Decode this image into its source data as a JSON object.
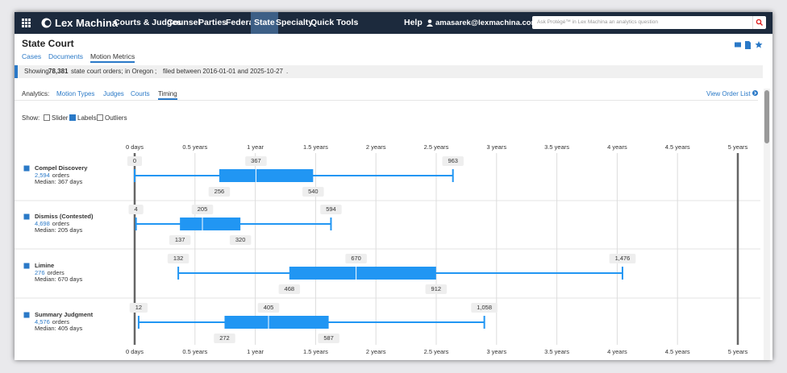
{
  "nav": {
    "logo": "Lex Machina",
    "items": [
      "Courts & Judges",
      "Counsel",
      "Parties",
      "Federal",
      "State",
      "Specialty",
      "Quick Tools"
    ],
    "active": "State",
    "help": "Help",
    "user": "amasarek@lexmachina.com",
    "search_placeholder": "Ask Protégé™ in Lex Machina an analytics question"
  },
  "header": {
    "title": "State Court",
    "tabs": [
      "Cases",
      "Documents",
      "Motion Metrics"
    ],
    "active_tab": "Motion Metrics"
  },
  "filter": {
    "prefix": "Showing",
    "count": "78,381",
    "suffix": "state court orders;",
    "court": "in Oregon",
    "separator": ";",
    "dates": "filed between 2016-01-01 and 2025-10-27",
    "end": "."
  },
  "analytics": {
    "label": "Analytics:",
    "tabs": [
      "Motion Types",
      "Judges",
      "Courts",
      "Timing"
    ],
    "active_tab": "Timing",
    "view_list": "View Order List"
  },
  "show": {
    "label": "Show:",
    "options": [
      {
        "label": "Slider",
        "checked": false
      },
      {
        "label": "Labels",
        "checked": true
      },
      {
        "label": "Outliers",
        "checked": false
      }
    ]
  },
  "chart": {
    "type": "boxplot",
    "color": "#2196f3",
    "grid": true,
    "xlim": [
      0,
      1825
    ],
    "xticks": [
      {
        "value": 0,
        "label": "0 days"
      },
      {
        "value": 182.5,
        "label": "0.5 years"
      },
      {
        "value": 365,
        "label": "1 year"
      },
      {
        "value": 547.5,
        "label": "1.5 years"
      },
      {
        "value": 730,
        "label": "2 years"
      },
      {
        "value": 912.5,
        "label": "2.5 years"
      },
      {
        "value": 1095,
        "label": "3 years"
      },
      {
        "value": 1277.5,
        "label": "3.5 years"
      },
      {
        "value": 1460,
        "label": "4 years"
      },
      {
        "value": 1642.5,
        "label": "4.5 years"
      },
      {
        "value": 1825,
        "label": "5 years"
      }
    ],
    "series": [
      {
        "name": "Compel Discovery",
        "checked": true,
        "count": "2,594",
        "count_unit": "orders",
        "median_text": "Median: 367 days",
        "min": 0,
        "q1": 256,
        "median": 367,
        "q3": 540,
        "max": 963
      },
      {
        "name": "Dismiss (Contested)",
        "checked": true,
        "count": "4,698",
        "count_unit": "orders",
        "median_text": "Median: 205 days",
        "min": 4,
        "q1": 137,
        "median": 205,
        "q3": 320,
        "max": 594
      },
      {
        "name": "Limine",
        "checked": true,
        "count": "276",
        "count_unit": "orders",
        "median_text": "Median: 670 days",
        "min": 132,
        "q1": 468,
        "median": 670,
        "q3": 912,
        "max": 1476,
        "value_labels": {
          "max": "1,476"
        }
      },
      {
        "name": "Summary Judgment",
        "checked": true,
        "count": "4,576",
        "count_unit": "orders",
        "median_text": "Median: 405 days",
        "min": 12,
        "q1": 272,
        "median": 405,
        "q3": 587,
        "max": 1058,
        "value_labels": {
          "max": "1,058"
        }
      }
    ]
  }
}
